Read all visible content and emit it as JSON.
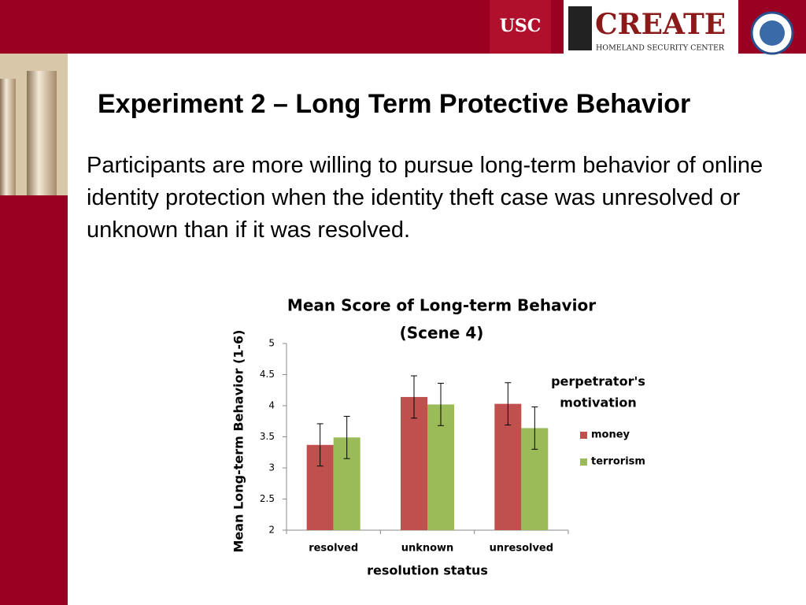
{
  "header": {
    "usc": "USC",
    "create": "CREATE",
    "center": "HOMELAND SECURITY CENTER"
  },
  "slide": {
    "title": "Experiment 2 – Long Term Protective Behavior",
    "text": "Participants are more willing to pursue long-term behavior of online identity protection when the identity theft case was unresolved or unknown than if it was resolved."
  },
  "chart_data": {
    "type": "bar",
    "title": [
      "Mean Score of Long-term Behavior",
      "(Scene 4)"
    ],
    "x_label": "resolution status",
    "y_label": "Mean Long-term Behavior (1-6)",
    "categories": [
      "resolved",
      "unknown",
      "unresolved"
    ],
    "legend_title": [
      "perpetrator's",
      "motivation"
    ],
    "series": [
      {
        "name": "money",
        "color": "#c0504d",
        "values": [
          3.37,
          4.14,
          4.03
        ],
        "errors": [
          0.34,
          0.34,
          0.34
        ]
      },
      {
        "name": "terrorism",
        "color": "#9bbb59",
        "values": [
          3.49,
          4.02,
          3.64
        ],
        "errors": [
          0.34,
          0.34,
          0.34
        ]
      }
    ],
    "ylim": [
      2,
      5
    ],
    "yticks": [
      2,
      2.5,
      3,
      3.5,
      4,
      4.5,
      5
    ],
    "grid": false
  }
}
